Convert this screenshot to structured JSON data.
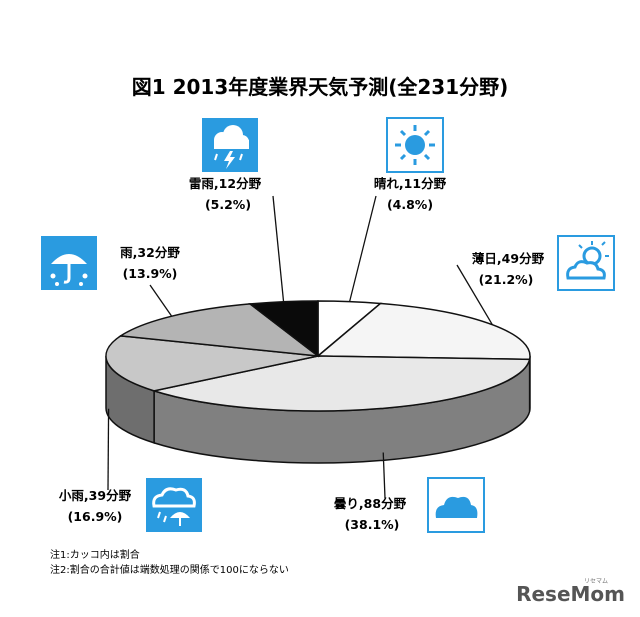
{
  "chart_data": {
    "type": "pie",
    "title": "図1 2013年度業界天気予測(全231分野)",
    "slices": [
      {
        "name": "晴れ",
        "label": "晴れ,11分野",
        "value": 11,
        "percent": "(4.8%)",
        "color": "#ffffff",
        "icon": "sun-icon"
      },
      {
        "name": "薄日",
        "label": "薄日,49分野",
        "value": 49,
        "percent": "(21.2%)",
        "color": "#f5f5f5",
        "icon": "sun-behind-cloud-icon"
      },
      {
        "name": "曇り",
        "label": "曇り,88分野",
        "value": 88,
        "percent": "(38.1%)",
        "color": "#e8e8e8",
        "icon": "cloud-icon"
      },
      {
        "name": "小雨",
        "label": "小雨,39分野",
        "value": 39,
        "percent": "(16.9%)",
        "color": "#c8c8c8",
        "icon": "cloud-umbrella-icon"
      },
      {
        "name": "雨",
        "label": "雨,32分野",
        "value": 32,
        "percent": "(13.9%)",
        "color": "#b4b4b4",
        "icon": "umbrella-icon"
      },
      {
        "name": "雷雨",
        "label": "雷雨,12分野",
        "value": 12,
        "percent": "(5.2%)",
        "color": "#0a0a0a",
        "icon": "thunder-cloud-icon"
      }
    ],
    "total": 231,
    "notes": [
      "注1:カッコ内は割合",
      "注2:割合の合計値は端数処理の関係で100にならない"
    ],
    "icon_color": "#2a9be0"
  },
  "watermark": {
    "main": "ReseMom",
    "sub": "リセマム"
  }
}
